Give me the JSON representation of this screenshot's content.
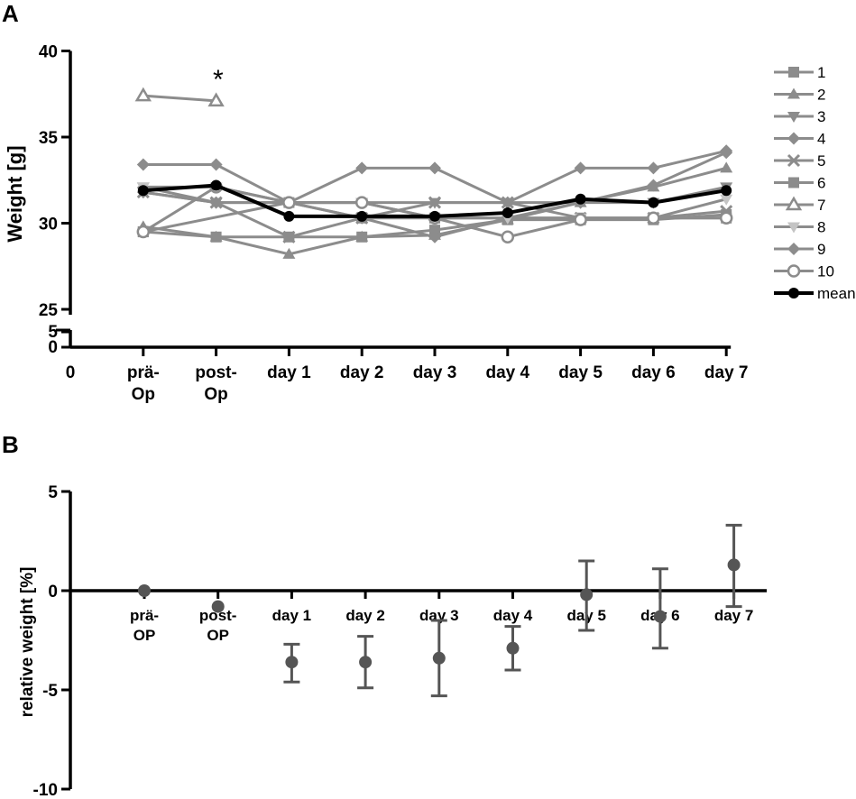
{
  "panels": {
    "a_label": "A",
    "b_label": "B"
  },
  "colors": {
    "individual": "#8c8c8c",
    "individual_dark": "#6e6e6e",
    "mean": "#000000",
    "axis": "#000000",
    "errorbar": "#555555"
  },
  "chart_data": [
    {
      "id": "A",
      "type": "line",
      "ylabel": "Weight [g]",
      "xlabel": "",
      "categories": [
        [
          "0"
        ],
        [
          "prä-",
          "Op"
        ],
        [
          "post-",
          "Op"
        ],
        [
          "day 1"
        ],
        [
          "day 2"
        ],
        [
          "day 3"
        ],
        [
          "day 4"
        ],
        [
          "day 5"
        ],
        [
          "day 6"
        ],
        [
          "day 7"
        ]
      ],
      "ylim": [
        25,
        40
      ],
      "yticks": [
        "25",
        "30",
        "35",
        "40"
      ],
      "broken_axis_ticks": [
        "0",
        "5"
      ],
      "grid": false,
      "legend_position": "right",
      "annotation": "*",
      "series": [
        {
          "name": "1",
          "marker": "square",
          "x": [
            1,
            2,
            3,
            4,
            5,
            6,
            7,
            8,
            9
          ],
          "values": [
            29.5,
            29.2,
            29.2,
            29.2,
            29.6,
            30.2,
            30.2,
            30.2,
            30.5
          ]
        },
        {
          "name": "2",
          "marker": "triangle",
          "x": [
            1,
            2,
            3,
            4,
            5,
            6,
            7,
            8,
            9
          ],
          "values": [
            29.8,
            29.2,
            28.2,
            29.2,
            29.3,
            30.2,
            31.2,
            32.1,
            33.2
          ]
        },
        {
          "name": "3",
          "marker": "triangle-down",
          "x": [
            1,
            2,
            3,
            4,
            5,
            6,
            7,
            8,
            9
          ],
          "values": [
            32.1,
            31.2,
            31.2,
            31.2,
            31.2,
            31.2,
            31.2,
            31.2,
            32.1
          ]
        },
        {
          "name": "4",
          "marker": "diamond",
          "x": [
            1,
            2,
            3,
            4,
            5,
            6,
            7,
            8,
            9
          ],
          "values": [
            31.8,
            31.2,
            31.2,
            30.3,
            29.2,
            30.3,
            31.2,
            32.2,
            34.1
          ]
        },
        {
          "name": "5",
          "marker": "x",
          "x": [
            1,
            2,
            3,
            4,
            5,
            6,
            7,
            8,
            9
          ],
          "values": [
            31.8,
            31.2,
            29.2,
            30.3,
            31.2,
            31.2,
            30.3,
            30.3,
            30.7
          ]
        },
        {
          "name": "6",
          "marker": "square",
          "x": [
            1,
            3,
            4,
            5,
            6,
            7,
            8,
            9
          ],
          "values": [
            29.5,
            31.2,
            30.3,
            30.3,
            30.3,
            30.3,
            30.3,
            30.3
          ]
        },
        {
          "name": "7",
          "marker": "triangle-open",
          "x": [
            1,
            2
          ],
          "values": [
            37.4,
            37.1
          ]
        },
        {
          "name": "8",
          "marker": "triangle-down-light",
          "x": [
            1,
            2,
            3,
            4,
            5,
            6,
            7,
            8,
            9
          ],
          "values": [
            32.1,
            32.1,
            31.2,
            31.2,
            30.3,
            30.3,
            30.3,
            30.3,
            31.4
          ]
        },
        {
          "name": "9",
          "marker": "diamond",
          "x": [
            1,
            2,
            3,
            4,
            5,
            6,
            7,
            8,
            9
          ],
          "values": [
            33.4,
            33.4,
            31.2,
            33.2,
            33.2,
            31.2,
            33.2,
            33.2,
            34.2
          ]
        },
        {
          "name": "10",
          "marker": "circle-open",
          "x": [
            1,
            2,
            3,
            4,
            5,
            6,
            7,
            8,
            9
          ],
          "values": [
            29.5,
            32.1,
            31.2,
            31.2,
            30.3,
            29.2,
            30.2,
            30.3,
            30.3
          ]
        },
        {
          "name": "mean",
          "marker": "circle",
          "x": [
            1,
            2,
            3,
            4,
            5,
            6,
            7,
            8,
            9
          ],
          "values": [
            31.9,
            32.2,
            30.4,
            30.4,
            30.4,
            30.6,
            31.4,
            31.2,
            31.9
          ]
        }
      ]
    },
    {
      "id": "B",
      "type": "scatter",
      "ylabel": "relative weight [%]",
      "xlabel": "",
      "categories": [
        [
          "prä-",
          "OP"
        ],
        [
          "post-",
          "OP"
        ],
        [
          "day 1"
        ],
        [
          "day 2"
        ],
        [
          "day 3"
        ],
        [
          "day 4"
        ],
        [
          "day 5"
        ],
        [
          "day 6"
        ],
        [
          "day 7"
        ]
      ],
      "ylim": [
        -10,
        5
      ],
      "yticks": [
        "5",
        "0",
        "-5",
        "-10"
      ],
      "grid": false,
      "series": [
        {
          "values": [
            0,
            -0.8,
            -3.6,
            -3.6,
            -3.4,
            -2.9,
            -0.2,
            -1.3,
            1.3
          ],
          "err_low": [
            0,
            -0.8,
            -4.6,
            -4.9,
            -5.3,
            -4.0,
            -2.0,
            -2.9,
            -0.8
          ],
          "err_high": [
            0,
            -0.8,
            -2.7,
            -2.3,
            -1.5,
            -1.8,
            1.5,
            1.1,
            3.3
          ]
        }
      ]
    }
  ]
}
